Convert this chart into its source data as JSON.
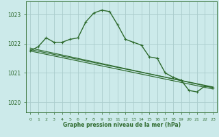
{
  "bg_color": "#cceaea",
  "grid_color": "#aacccc",
  "line_color": "#2d6a2d",
  "xlabel": "Graphe pression niveau de la mer (hPa)",
  "ylim": [
    1019.65,
    1023.45
  ],
  "yticks": [
    1020,
    1021,
    1022,
    1023
  ],
  "xlim": [
    -0.5,
    23.5
  ],
  "xticks": [
    0,
    1,
    2,
    3,
    4,
    5,
    6,
    7,
    8,
    9,
    10,
    11,
    12,
    13,
    14,
    15,
    16,
    17,
    18,
    19,
    20,
    21,
    22,
    23
  ],
  "lines": [
    {
      "x": [
        0,
        1,
        2,
        3,
        4,
        5,
        6,
        7,
        8,
        9,
        10,
        11,
        12,
        13,
        14,
        15,
        16,
        17,
        18,
        19,
        20,
        21,
        22,
        23
      ],
      "y": [
        1021.75,
        1021.9,
        1022.2,
        1022.05,
        1022.05,
        1022.15,
        1022.2,
        1022.75,
        1023.05,
        1023.15,
        1023.1,
        1022.65,
        1022.15,
        1022.05,
        1021.95,
        1021.55,
        1021.5,
        1021.0,
        1020.85,
        1020.75,
        1020.4,
        1020.35,
        1020.55,
        1020.5
      ],
      "lw": 1.0,
      "ms": 3.5
    },
    {
      "x": [
        0,
        23
      ],
      "y": [
        1021.85,
        1020.5
      ],
      "lw": 0.85,
      "ms": 0
    },
    {
      "x": [
        0,
        23
      ],
      "y": [
        1021.75,
        1020.45
      ],
      "lw": 0.85,
      "ms": 0
    },
    {
      "x": [
        0,
        23
      ],
      "y": [
        1021.8,
        1020.52
      ],
      "lw": 0.85,
      "ms": 0
    }
  ]
}
